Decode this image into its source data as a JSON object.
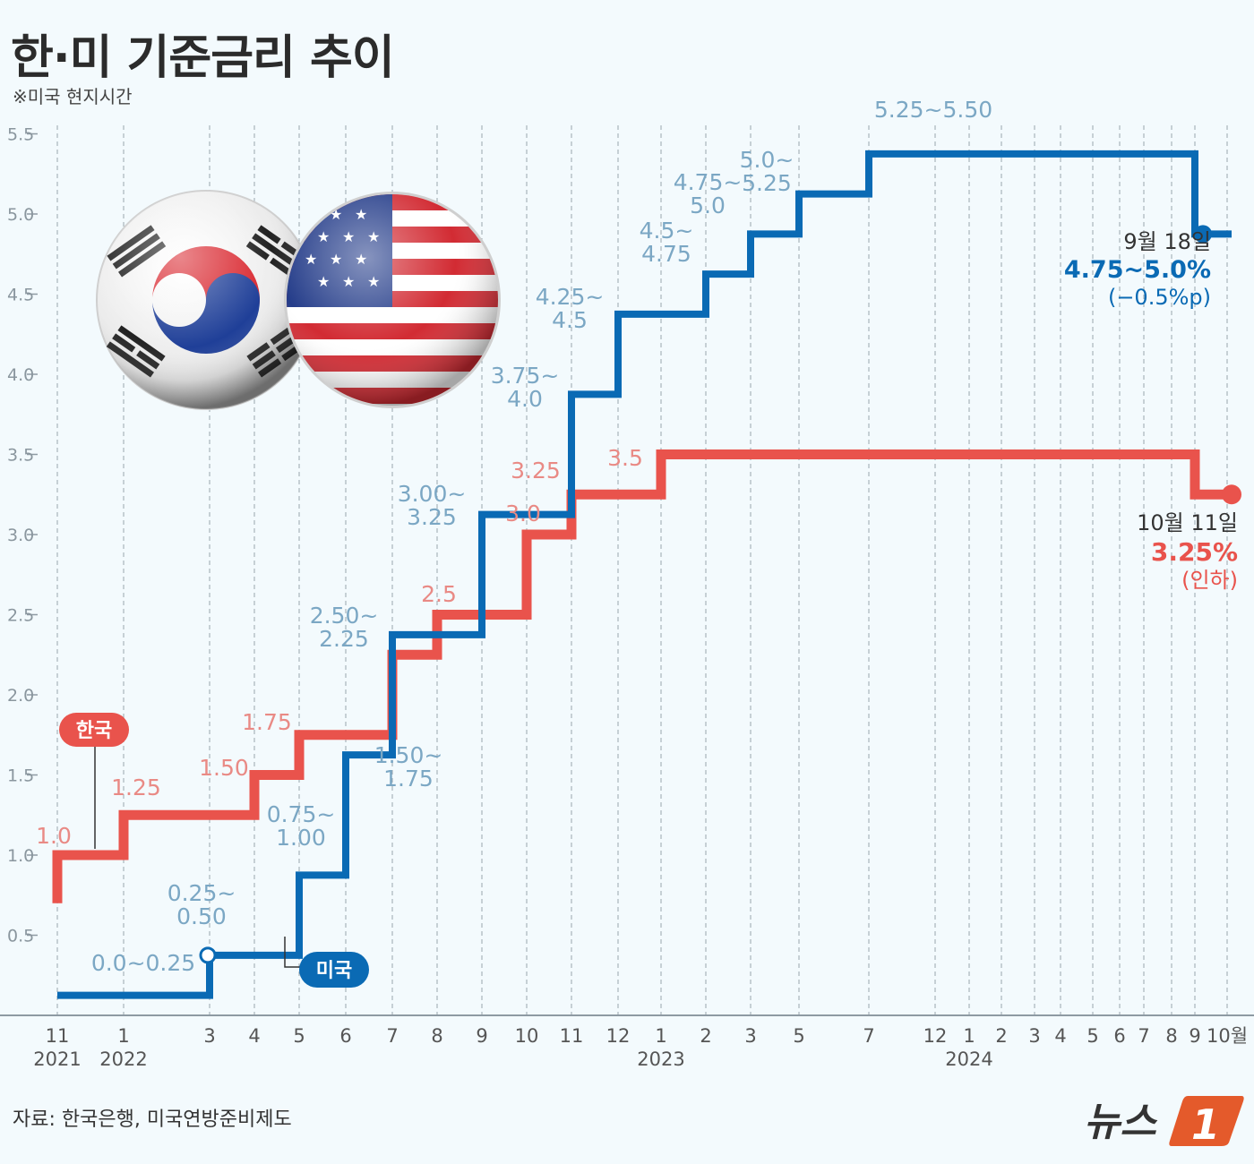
{
  "title": "한·미 기준금리 추이",
  "note": "※미국 현지시간",
  "source": "자료: 한국은행, 미국연방준비제도",
  "logo_text": "뉴스1",
  "colors": {
    "korea": "#e9534c",
    "us": "#0a6ab4",
    "korea_label": "#e98a85",
    "us_label": "#7ba7c4",
    "grid": "#9aa5ad"
  },
  "icons": [
    "korea-flag-icon",
    "us-flag-icon"
  ],
  "chart_data": {
    "type": "line",
    "step": true,
    "ylim": [
      0,
      5.5
    ],
    "yticks": [
      "0.5",
      "1.0",
      "1.5",
      "2.0",
      "2.5",
      "3.0",
      "3.5",
      "4.0",
      "4.5",
      "5.0",
      "5.5"
    ],
    "xticks": [
      {
        "label": "11",
        "year": "2021"
      },
      {
        "label": "1",
        "year": "2022"
      },
      {
        "label": "3"
      },
      {
        "label": "4"
      },
      {
        "label": "5"
      },
      {
        "label": "6"
      },
      {
        "label": "7"
      },
      {
        "label": "8"
      },
      {
        "label": "9"
      },
      {
        "label": "10"
      },
      {
        "label": "11"
      },
      {
        "label": "12"
      },
      {
        "label": "1",
        "year": "2023"
      },
      {
        "label": "2"
      },
      {
        "label": "3"
      },
      {
        "label": "5"
      },
      {
        "label": "7"
      },
      {
        "label": "12"
      },
      {
        "label": "1",
        "year": "2024"
      },
      {
        "label": "2"
      },
      {
        "label": "3"
      },
      {
        "label": "4"
      },
      {
        "label": "5"
      },
      {
        "label": "6"
      },
      {
        "label": "7"
      },
      {
        "label": "8"
      },
      {
        "label": "9"
      },
      {
        "label": "10월"
      }
    ],
    "series": [
      {
        "name": "한국",
        "values": [
          1.0,
          1.25,
          1.25,
          1.5,
          1.75,
          1.75,
          2.25,
          2.5,
          2.5,
          3.0,
          3.25,
          3.25,
          3.5,
          3.5,
          3.5,
          3.5,
          3.5,
          3.5,
          3.5,
          3.5,
          3.5,
          3.5,
          3.5,
          3.5,
          3.5,
          3.5,
          3.25,
          3.25
        ],
        "labels": [
          "1.0",
          "1.25",
          "1.50",
          "1.75",
          "2.5",
          "3.0",
          "3.25",
          "3.5"
        ],
        "end_date": "10월 11일",
        "end_value": "3.25%",
        "end_note": "(인하)"
      },
      {
        "name": "미국",
        "values": [
          0.125,
          0.125,
          0.375,
          0.375,
          0.875,
          1.625,
          2.375,
          2.375,
          3.125,
          3.125,
          3.875,
          4.375,
          4.375,
          4.625,
          4.875,
          5.125,
          5.375,
          5.375,
          5.375,
          5.375,
          5.375,
          5.375,
          5.375,
          5.375,
          5.375,
          5.375,
          4.875,
          4.875
        ],
        "labels": [
          "0.0~0.25",
          "0.25~\n0.50",
          "0.75~\n1.00",
          "1.50~\n1.75",
          "2.50~\n2.25",
          "3.00~\n3.25",
          "3.75~\n4.0",
          "4.25~\n4.5",
          "4.5~\n4.75",
          "4.75~\n5.0",
          "5.0~\n5.25",
          "5.25~5.50"
        ],
        "end_date": "9월 18일",
        "end_value": "4.75~5.0%",
        "end_note": "(−0.5%p)"
      }
    ]
  }
}
